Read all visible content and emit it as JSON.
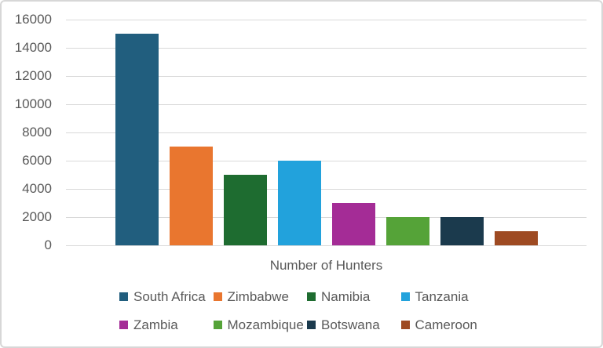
{
  "chart_data": {
    "type": "bar",
    "categories": [
      "South Africa",
      "Zimbabwe",
      "Namibia",
      "Tanzania",
      "Zambia",
      "Mozambique",
      "Botswana",
      "Cameroon"
    ],
    "values": [
      15000,
      7000,
      5000,
      6000,
      3000,
      2000,
      2000,
      1000
    ],
    "bar_colors": [
      "#215E7E",
      "#E9762F",
      "#1E6C30",
      "#22A2DC",
      "#A42C96",
      "#55A338",
      "#1B3A4D",
      "#9E4A22"
    ],
    "title": "",
    "xlabel": "Number of Hunters",
    "ylabel": "",
    "ylim": [
      0,
      16000
    ],
    "y_ticks": [
      0,
      2000,
      4000,
      6000,
      8000,
      10000,
      12000,
      14000,
      16000
    ],
    "grid": true,
    "legend_position": "bottom",
    "legend_rows": [
      [
        "South Africa",
        "Zimbabwe",
        "Namibia",
        "Tanzania"
      ],
      [
        "Zambia",
        "Mozambique",
        "Botswana",
        "Cameroon"
      ]
    ]
  },
  "styles": {
    "text_color": "#595959",
    "gridline_color": "#d9d9d9",
    "frame_border_color": "#d7d7d7",
    "background_color": "#ffffff"
  }
}
